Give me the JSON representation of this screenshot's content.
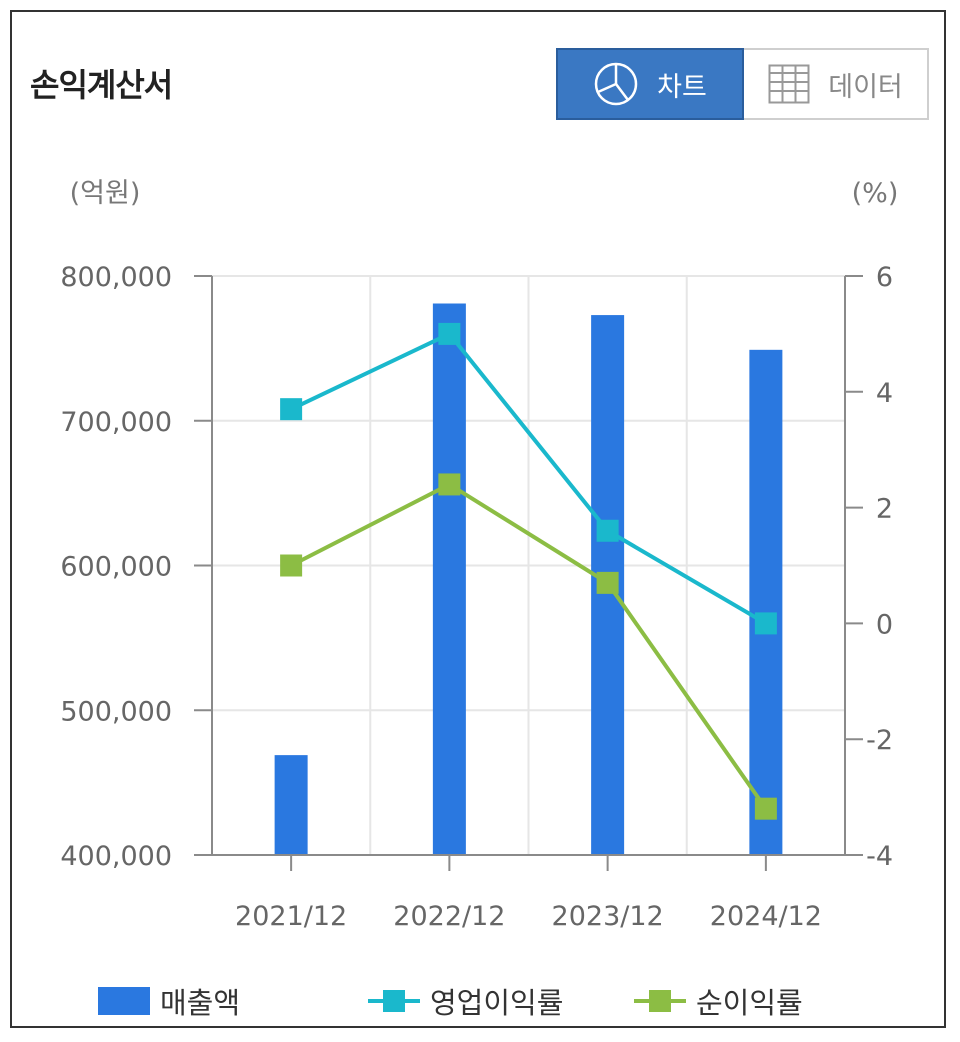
{
  "header": {
    "title": "손익계산서",
    "chart_button_label": "차트",
    "data_button_label": "데이터",
    "chart_icon": "pie-chart-icon",
    "data_icon": "table-grid-icon",
    "active_color": "#3a78c3"
  },
  "chart_data": {
    "type": "bar+line",
    "categories": [
      "2021/12",
      "2022/12",
      "2023/12",
      "2024/12"
    ],
    "left_axis": {
      "unit_label": "(억원)",
      "range": [
        400000,
        800000
      ],
      "ticks": [
        "800,000",
        "700,000",
        "600,000",
        "500,000",
        "400,000"
      ],
      "tick_values": [
        800000,
        700000,
        600000,
        500000,
        400000
      ]
    },
    "right_axis": {
      "unit_label": "(%)",
      "range": [
        -4,
        6
      ],
      "ticks": [
        "6",
        "4",
        "2",
        "0",
        "-2",
        "-4"
      ],
      "tick_values": [
        6,
        4,
        2,
        0,
        -2,
        -4
      ]
    },
    "series": [
      {
        "name": "매출액",
        "type": "bar",
        "axis": "left",
        "color": "#2a78e0",
        "values": [
          469000,
          781000,
          773000,
          749000
        ]
      },
      {
        "name": "영업이익률",
        "type": "line",
        "axis": "right",
        "color": "#1ab8cc",
        "values": [
          3.7,
          5.0,
          1.6,
          0.0
        ]
      },
      {
        "name": "순이익률",
        "type": "line",
        "axis": "right",
        "color": "#8cbd44",
        "values": [
          1.0,
          2.4,
          0.7,
          -3.2
        ]
      }
    ],
    "grid": true,
    "legend": "bottom"
  }
}
